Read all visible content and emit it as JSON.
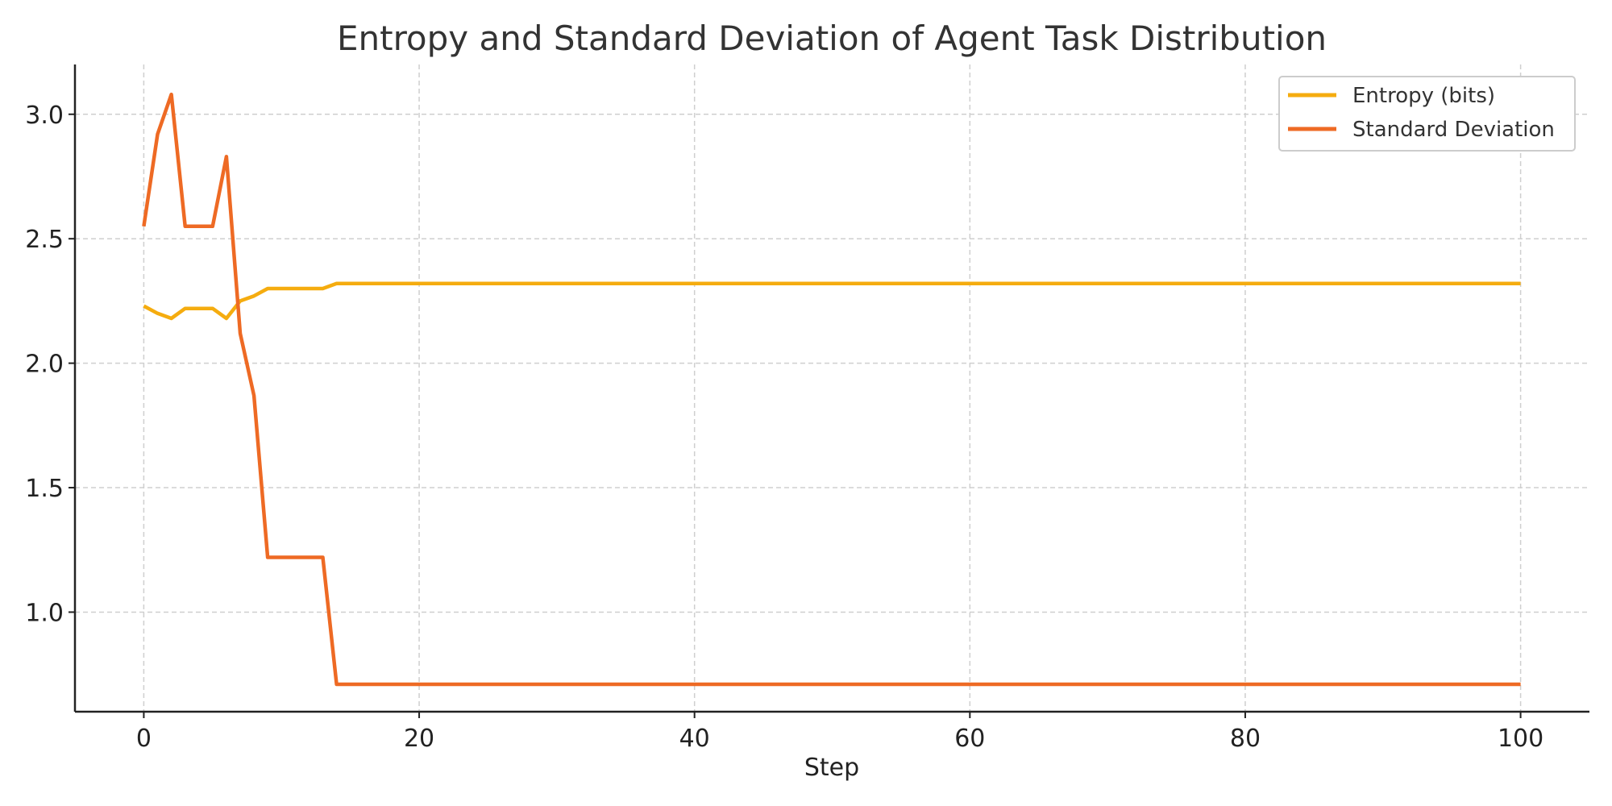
{
  "chart_data": {
    "type": "line",
    "title": "Entropy and Standard Deviation of Agent Task Distribution",
    "xlabel": "Step",
    "ylabel": "",
    "xlim": [
      -5,
      105
    ],
    "ylim": [
      0.6,
      3.2
    ],
    "xticks": [
      0,
      20,
      40,
      60,
      80,
      100
    ],
    "yticks": [
      1.0,
      1.5,
      2.0,
      2.5,
      3.0
    ],
    "xtick_labels": [
      "0",
      "20",
      "40",
      "60",
      "80",
      "100"
    ],
    "ytick_labels": [
      "1.0",
      "1.5",
      "2.0",
      "2.5",
      "3.0"
    ],
    "grid": true,
    "grid_style": "dashed",
    "legend_position": "top-right",
    "series": [
      {
        "name": "Entropy (bits)",
        "color": "#F5AC0F",
        "points": [
          [
            0,
            2.23
          ],
          [
            1,
            2.2
          ],
          [
            2,
            2.18
          ],
          [
            3,
            2.22
          ],
          [
            4,
            2.22
          ],
          [
            5,
            2.22
          ],
          [
            6,
            2.18
          ],
          [
            7,
            2.25
          ],
          [
            8,
            2.27
          ],
          [
            9,
            2.3
          ],
          [
            10,
            2.3
          ],
          [
            11,
            2.3
          ],
          [
            12,
            2.3
          ],
          [
            13,
            2.3
          ],
          [
            14,
            2.32
          ],
          [
            100,
            2.32
          ]
        ]
      },
      {
        "name": "Standard Deviation",
        "color": "#EE6A24",
        "points": [
          [
            0,
            2.55
          ],
          [
            1,
            2.92
          ],
          [
            2,
            3.08
          ],
          [
            3,
            2.55
          ],
          [
            4,
            2.55
          ],
          [
            5,
            2.55
          ],
          [
            6,
            2.83
          ],
          [
            7,
            2.12
          ],
          [
            8,
            1.87
          ],
          [
            9,
            1.22
          ],
          [
            10,
            1.22
          ],
          [
            11,
            1.22
          ],
          [
            12,
            1.22
          ],
          [
            13,
            1.22
          ],
          [
            14,
            0.71
          ],
          [
            100,
            0.71
          ]
        ]
      }
    ]
  }
}
